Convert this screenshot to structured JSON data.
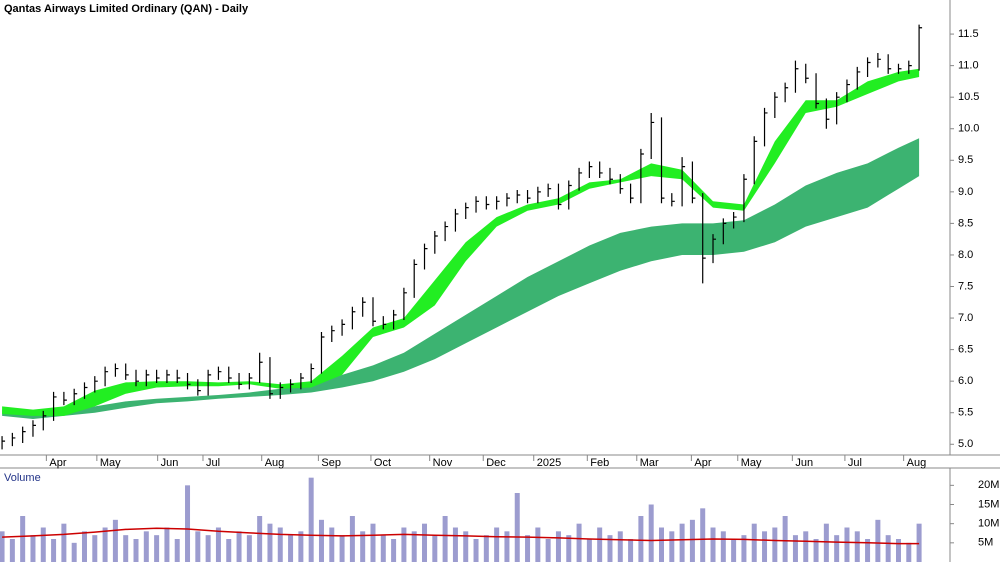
{
  "chart_data": [
    {
      "type": "hlc",
      "title": "Qantas Airways Limited Ordinary (QAN) - Daily",
      "x": [
        0,
        1,
        2,
        3,
        4,
        5,
        6,
        7,
        8,
        9,
        10,
        11,
        12,
        13,
        14,
        15,
        16,
        17,
        18,
        19,
        20,
        21,
        22,
        23,
        24,
        25,
        26,
        27,
        28,
        29,
        30,
        31,
        32,
        33,
        34,
        35,
        36,
        37,
        38,
        39,
        40,
        41,
        42,
        43,
        44,
        45,
        46,
        47,
        48,
        49,
        50,
        51,
        52,
        53,
        54,
        55,
        56,
        57,
        58,
        59,
        60,
        61,
        62,
        63,
        64,
        65,
        66,
        67,
        68,
        69,
        70,
        71,
        72,
        73,
        74,
        75,
        76,
        77,
        78,
        79,
        80,
        81,
        82,
        83,
        84,
        85,
        86,
        87,
        88,
        89
      ],
      "high": [
        5.13,
        5.18,
        5.28,
        5.38,
        5.53,
        5.83,
        5.83,
        5.88,
        5.98,
        6.08,
        6.23,
        6.28,
        6.28,
        6.18,
        6.18,
        6.18,
        6.18,
        6.18,
        6.13,
        6.03,
        6.18,
        6.23,
        6.23,
        6.13,
        6.13,
        6.45,
        6.38,
        5.98,
        6.03,
        6.13,
        6.28,
        6.78,
        6.88,
        6.98,
        7.18,
        7.33,
        7.33,
        7.03,
        7.13,
        7.48,
        7.93,
        8.18,
        8.38,
        8.53,
        8.73,
        8.83,
        8.93,
        8.93,
        8.93,
        8.98,
        9.03,
        9.03,
        9.08,
        9.13,
        9.13,
        9.18,
        9.38,
        9.48,
        9.48,
        9.38,
        9.28,
        9.13,
        9.68,
        10.25,
        10.18,
        8.98,
        9.55,
        9.48,
        8.98,
        8.33,
        8.58,
        8.68,
        9.28,
        9.88,
        10.33,
        10.58,
        10.73,
        11.08,
        11.03,
        10.88,
        10.48,
        10.58,
        10.78,
        10.98,
        11.13,
        11.2,
        11.18,
        11.03,
        11.08,
        11.65
      ],
      "low": [
        4.92,
        4.97,
        5.02,
        5.12,
        5.22,
        5.37,
        5.62,
        5.62,
        5.72,
        5.82,
        5.92,
        6.07,
        6.02,
        5.92,
        5.92,
        5.97,
        5.97,
        5.97,
        5.87,
        5.77,
        5.77,
        6.02,
        5.97,
        5.87,
        5.87,
        5.97,
        5.72,
        5.72,
        5.82,
        5.87,
        5.97,
        6.12,
        6.62,
        6.72,
        6.82,
        7.02,
        6.87,
        6.82,
        6.82,
        6.97,
        7.32,
        7.77,
        8.02,
        8.22,
        8.37,
        8.57,
        8.67,
        8.72,
        8.72,
        8.77,
        8.82,
        8.82,
        8.82,
        8.92,
        8.72,
        8.72,
        9.02,
        9.22,
        9.22,
        9.12,
        8.97,
        8.82,
        8.82,
        9.52,
        8.82,
        8.77,
        8.77,
        8.82,
        7.55,
        7.87,
        8.17,
        8.42,
        8.52,
        9.12,
        9.72,
        10.17,
        10.42,
        10.57,
        10.72,
        10.32,
        10.0,
        10.07,
        10.42,
        10.62,
        10.82,
        10.97,
        10.87,
        10.87,
        10.87,
        10.92
      ],
      "close": [
        5.05,
        5.1,
        5.2,
        5.3,
        5.45,
        5.75,
        5.7,
        5.8,
        5.9,
        6.0,
        6.15,
        6.2,
        6.1,
        6.0,
        6.1,
        6.05,
        6.1,
        6.05,
        5.95,
        5.85,
        6.1,
        6.15,
        6.05,
        5.95,
        6.05,
        6.3,
        5.8,
        5.9,
        5.95,
        6.05,
        6.2,
        6.7,
        6.8,
        6.9,
        7.1,
        7.25,
        6.95,
        6.9,
        7.05,
        7.4,
        7.85,
        8.1,
        8.3,
        8.45,
        8.65,
        8.75,
        8.85,
        8.8,
        8.85,
        8.9,
        8.95,
        8.9,
        9.0,
        9.05,
        8.8,
        9.1,
        9.3,
        9.4,
        9.3,
        9.2,
        9.05,
        8.9,
        9.6,
        10.1,
        8.9,
        8.85,
        9.4,
        8.9,
        7.95,
        8.25,
        8.5,
        8.6,
        9.2,
        9.8,
        10.25,
        10.5,
        10.65,
        10.95,
        10.8,
        10.4,
        10.15,
        10.5,
        10.7,
        10.9,
        11.05,
        11.1,
        10.95,
        10.95,
        11.0,
        11.6
      ],
      "color": "#000000",
      "bands": [
        {
          "x": [
            0,
            3,
            6,
            9,
            12,
            15,
            18,
            21,
            24,
            27,
            30,
            33,
            36,
            39,
            42,
            45,
            48,
            51,
            54,
            57,
            60,
            63,
            66,
            69,
            72,
            75,
            78,
            81,
            84,
            87,
            89
          ],
          "upper": [
            5.55,
            5.5,
            5.52,
            5.6,
            5.68,
            5.72,
            5.75,
            5.78,
            5.82,
            5.88,
            5.95,
            6.1,
            6.25,
            6.45,
            6.75,
            7.05,
            7.35,
            7.65,
            7.9,
            8.15,
            8.35,
            8.45,
            8.5,
            8.5,
            8.55,
            8.8,
            9.1,
            9.3,
            9.45,
            9.7,
            9.85
          ],
          "lower": [
            5.45,
            5.4,
            5.45,
            5.5,
            5.58,
            5.65,
            5.68,
            5.72,
            5.75,
            5.78,
            5.82,
            5.9,
            6.0,
            6.15,
            6.35,
            6.6,
            6.85,
            7.1,
            7.35,
            7.55,
            7.75,
            7.9,
            8.0,
            8.0,
            8.05,
            8.2,
            8.45,
            8.6,
            8.75,
            9.05,
            9.25
          ],
          "color": "#3cb371"
        },
        {
          "x": [
            0,
            3,
            6,
            9,
            12,
            15,
            18,
            21,
            24,
            27,
            30,
            33,
            36,
            39,
            42,
            45,
            48,
            51,
            54,
            57,
            60,
            63,
            66,
            69,
            72,
            75,
            78,
            81,
            84,
            87,
            89
          ],
          "upper": [
            5.6,
            5.55,
            5.6,
            5.85,
            5.98,
            6.0,
            6.0,
            5.98,
            6.0,
            5.95,
            6.0,
            6.4,
            6.85,
            7.0,
            7.6,
            8.2,
            8.6,
            8.8,
            8.9,
            9.15,
            9.2,
            9.45,
            9.35,
            8.85,
            8.8,
            9.8,
            10.45,
            10.45,
            10.75,
            10.9,
            10.95
          ],
          "lower": [
            5.48,
            5.45,
            5.45,
            5.6,
            5.8,
            5.9,
            5.92,
            5.92,
            5.95,
            5.88,
            5.9,
            6.1,
            6.7,
            6.85,
            7.2,
            7.9,
            8.45,
            8.7,
            8.8,
            9.05,
            9.15,
            9.25,
            9.2,
            8.75,
            8.7,
            9.45,
            10.25,
            10.35,
            10.55,
            10.75,
            10.82
          ],
          "color": "#22ee22"
        }
      ],
      "xlim": [
        -0.2,
        92
      ],
      "xticks": [
        {
          "value": 4.3,
          "label": "Apr"
        },
        {
          "value": 9.2,
          "label": "May"
        },
        {
          "value": 15.1,
          "label": "Jun"
        },
        {
          "value": 19.5,
          "label": "Jul"
        },
        {
          "value": 25.2,
          "label": "Aug"
        },
        {
          "value": 30.7,
          "label": "Sep"
        },
        {
          "value": 35.8,
          "label": "Oct"
        },
        {
          "value": 41.5,
          "label": "Nov"
        },
        {
          "value": 46.7,
          "label": "Dec"
        },
        {
          "value": 51.6,
          "label": "2025"
        },
        {
          "value": 56.8,
          "label": "Feb"
        },
        {
          "value": 61.6,
          "label": "Mar"
        },
        {
          "value": 66.9,
          "label": "Apr"
        },
        {
          "value": 71.4,
          "label": "May"
        },
        {
          "value": 76.7,
          "label": "Jun"
        },
        {
          "value": 81.8,
          "label": "Jul"
        },
        {
          "value": 87.5,
          "label": "Aug"
        }
      ],
      "ylim": [
        4.83,
        12.04
      ],
      "yticks": [
        {
          "value": 5,
          "label": "5.0"
        },
        5.5,
        {
          "value": 6,
          "label": "6.0"
        },
        6.5,
        {
          "value": 7,
          "label": "7.0"
        },
        7.5,
        {
          "value": 8,
          "label": "8.0"
        },
        8.5,
        {
          "value": 9,
          "label": "9.0"
        },
        9.5,
        {
          "value": 10,
          "label": "10.0"
        },
        10.5,
        {
          "value": 11,
          "label": "11.0"
        },
        11.5
      ]
    },
    {
      "type": "bar",
      "title": "Volume",
      "x": [
        0,
        1,
        2,
        3,
        4,
        5,
        6,
        7,
        8,
        9,
        10,
        11,
        12,
        13,
        14,
        15,
        16,
        17,
        18,
        19,
        20,
        21,
        22,
        23,
        24,
        25,
        26,
        27,
        28,
        29,
        30,
        31,
        32,
        33,
        34,
        35,
        36,
        37,
        38,
        39,
        40,
        41,
        42,
        43,
        44,
        45,
        46,
        47,
        48,
        49,
        50,
        51,
        52,
        53,
        54,
        55,
        56,
        57,
        58,
        59,
        60,
        61,
        62,
        63,
        64,
        65,
        66,
        67,
        68,
        69,
        70,
        71,
        72,
        73,
        74,
        75,
        76,
        77,
        78,
        79,
        80,
        81,
        82,
        83,
        84,
        85,
        86,
        87,
        88,
        89
      ],
      "values": [
        8,
        6,
        12,
        7,
        9,
        6,
        10,
        5,
        8,
        7,
        9,
        11,
        7,
        6,
        8,
        7,
        9,
        6,
        20,
        8,
        7,
        9,
        6,
        8,
        7,
        12,
        10,
        9,
        7,
        8,
        22,
        11,
        9,
        7,
        12,
        8,
        10,
        7,
        6,
        9,
        8,
        10,
        7,
        12,
        9,
        8,
        6,
        7,
        9,
        8,
        18,
        7,
        9,
        6,
        8,
        7,
        10,
        6,
        9,
        7,
        8,
        6,
        12,
        15,
        9,
        8,
        10,
        11,
        14,
        9,
        8,
        6,
        7,
        10,
        8,
        9,
        12,
        7,
        8,
        6,
        10,
        7,
        9,
        8,
        6,
        11,
        7,
        6,
        5,
        10
      ],
      "color": "#9c9ccf",
      "line": {
        "x": [
          0,
          3,
          6,
          9,
          12,
          15,
          18,
          21,
          24,
          27,
          30,
          33,
          36,
          39,
          42,
          45,
          48,
          51,
          54,
          57,
          60,
          63,
          66,
          69,
          72,
          75,
          78,
          81,
          84,
          87,
          89
        ],
        "values": [
          6.5,
          6.8,
          7.2,
          7.8,
          8.5,
          8.8,
          8.6,
          8.0,
          7.6,
          7.2,
          7.0,
          6.8,
          7.0,
          7.2,
          7.0,
          6.8,
          6.6,
          6.5,
          6.3,
          6.0,
          5.8,
          5.6,
          5.8,
          6.0,
          5.9,
          5.6,
          5.4,
          5.2,
          5.0,
          4.8,
          4.8
        ],
        "color": "#cc0000"
      },
      "xlim": [
        -0.2,
        92
      ],
      "ylim": [
        0,
        24
      ],
      "yticks": [
        {
          "value": 5,
          "label": "5M"
        },
        {
          "value": 10,
          "label": "10M"
        },
        {
          "value": 15,
          "label": "15M"
        },
        {
          "value": 20,
          "label": "20M"
        }
      ]
    }
  ]
}
